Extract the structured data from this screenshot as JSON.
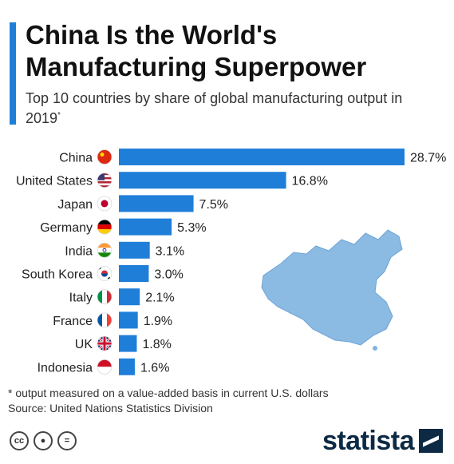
{
  "title": "China Is the World's Manufacturing Superpower",
  "subtitle": "Top 10 countries by share of global manufacturing output in 2019",
  "subtitle_mark": "*",
  "footnote": "* output measured on a value-added basis in current U.S. dollars",
  "source": "Source: United Nations Statistics Division",
  "brand": "statista",
  "colors": {
    "bar": "#1f7fd8",
    "accent": "#1f7fd8",
    "map": "#7fb3e0"
  },
  "chart_data": {
    "type": "bar",
    "orientation": "horizontal",
    "categories": [
      "China",
      "United States",
      "Japan",
      "Germany",
      "India",
      "South Korea",
      "Italy",
      "France",
      "UK",
      "Indonesia"
    ],
    "values": [
      28.7,
      16.8,
      7.5,
      5.3,
      3.1,
      3.0,
      2.1,
      1.9,
      1.8,
      1.6
    ],
    "value_labels": [
      "28.7%",
      "16.8%",
      "7.5%",
      "5.3%",
      "3.1%",
      "3.0%",
      "2.1%",
      "1.9%",
      "1.8%",
      "1.6%"
    ],
    "unit": "%",
    "flags": [
      "china-flag-icon",
      "usa-flag-icon",
      "japan-flag-icon",
      "germany-flag-icon",
      "india-flag-icon",
      "south-korea-flag-icon",
      "italy-flag-icon",
      "france-flag-icon",
      "uk-flag-icon",
      "indonesia-flag-icon"
    ],
    "xlim": [
      0,
      28.7
    ],
    "grid": false,
    "legend": "none"
  }
}
